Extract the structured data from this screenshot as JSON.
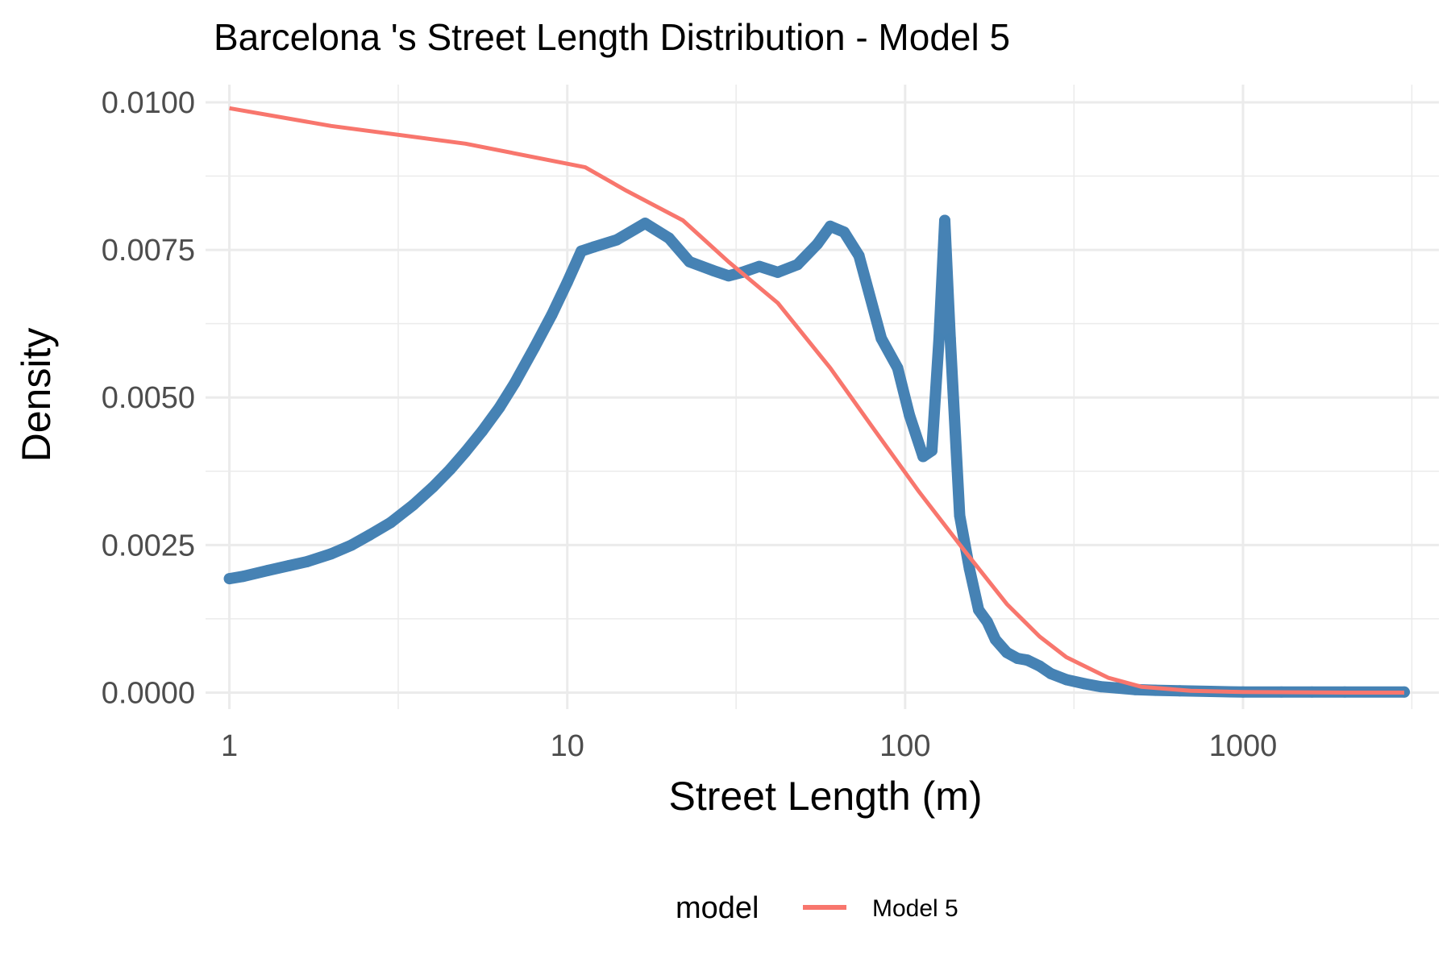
{
  "chart_data": {
    "type": "line",
    "title": "Barcelona 's Street Length Distribution - Model 5",
    "xlabel": "Street Length (m)",
    "ylabel": "Density",
    "xscale": "log10",
    "xlim": [
      0.85,
      3800
    ],
    "ylim": [
      -0.00028,
      0.0103
    ],
    "x_ticks": [
      1,
      10,
      100,
      1000
    ],
    "x_tick_labels": [
      "1",
      "10",
      "100",
      "1000"
    ],
    "x_minor_ticks": [
      3.16,
      31.6,
      316,
      3160
    ],
    "y_ticks": [
      0.0,
      0.0025,
      0.005,
      0.0075,
      0.01
    ],
    "y_tick_labels": [
      "0.0000",
      "0.0025",
      "0.0050",
      "0.0075",
      "0.0100"
    ],
    "y_minor_ticks": [
      0.00125,
      0.00375,
      0.00625,
      0.00875
    ],
    "grid": true,
    "legend": {
      "title": "model",
      "position": "bottom",
      "items": [
        {
          "label": "Model 5",
          "color": "#F8766D"
        }
      ]
    },
    "series": [
      {
        "kind": "empirical-density",
        "color": "#4682B4",
        "marker": "circle",
        "x": [
          1,
          1.1,
          1.3,
          1.5,
          1.7,
          2,
          2.3,
          2.6,
          3,
          3.5,
          4,
          4.5,
          5,
          5.6,
          6.3,
          7,
          8,
          9,
          10,
          11,
          12,
          14,
          17,
          20,
          23,
          27,
          30,
          33,
          37,
          42,
          48,
          55,
          60,
          66,
          73,
          85,
          95,
          103,
          113,
          120,
          126,
          131,
          136,
          145,
          155,
          165,
          175,
          185,
          200,
          215,
          230,
          250,
          270,
          300,
          340,
          380,
          420,
          480,
          550,
          650,
          800,
          1000,
          1300,
          1600,
          2000,
          3000
        ],
        "y": [
          0.00193,
          0.00197,
          0.00207,
          0.00215,
          0.00222,
          0.00235,
          0.0025,
          0.00267,
          0.00288,
          0.00318,
          0.00348,
          0.00378,
          0.00408,
          0.00443,
          0.00483,
          0.00525,
          0.00585,
          0.0064,
          0.00695,
          0.00748,
          0.00755,
          0.00767,
          0.00795,
          0.0077,
          0.0073,
          0.00715,
          0.00706,
          0.00712,
          0.00722,
          0.00712,
          0.00725,
          0.0076,
          0.0079,
          0.0078,
          0.0074,
          0.006,
          0.0055,
          0.0047,
          0.004,
          0.0041,
          0.006,
          0.008,
          0.006,
          0.003,
          0.0021,
          0.0014,
          0.0012,
          0.0009,
          0.00068,
          0.00058,
          0.00055,
          0.00045,
          0.00032,
          0.00022,
          0.00015,
          0.0001,
          8e-05,
          5e-05,
          4e-05,
          3e-05,
          2e-05,
          1e-05,
          1e-05,
          1e-05,
          1e-05,
          1e-05
        ]
      },
      {
        "name": "Model 5",
        "color": "#F8766D",
        "x": [
          1,
          2,
          5,
          11.3,
          15,
          22,
          30,
          42,
          60,
          80,
          110,
          150,
          200,
          250,
          300,
          400,
          500,
          700,
          1000,
          2000,
          3000
        ],
        "y": [
          0.0099,
          0.0096,
          0.0093,
          0.0089,
          0.0085,
          0.008,
          0.0073,
          0.0066,
          0.0055,
          0.0045,
          0.0034,
          0.0024,
          0.0015,
          0.00095,
          0.0006,
          0.00025,
          0.0001,
          3e-05,
          1e-05,
          0.0,
          0.0
        ]
      }
    ]
  }
}
